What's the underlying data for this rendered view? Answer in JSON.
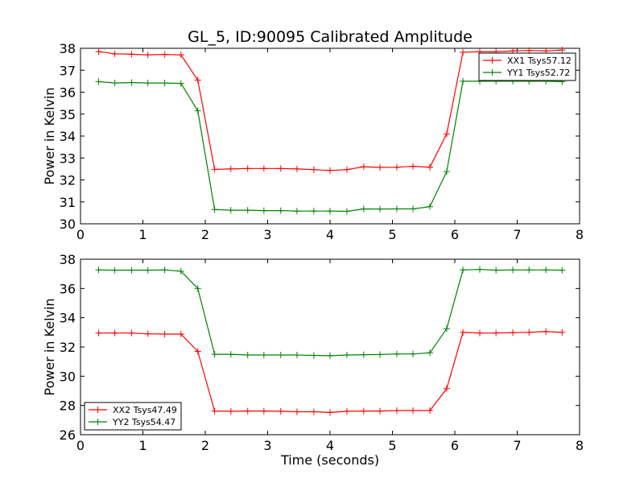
{
  "figure": {
    "title": "GL_5, ID:90095 Calibrated Amplitude",
    "xlabel": "Time (seconds)"
  },
  "colors": {
    "red": "#ff0000",
    "green": "#008000"
  },
  "chart_data": [
    {
      "type": "line",
      "title": "GL_5, ID:90095 Calibrated Amplitude",
      "xlabel": "",
      "ylabel": "Power in Kelvin",
      "xlim": [
        0,
        8
      ],
      "ylim": [
        30,
        38
      ],
      "xticks": [
        "0",
        "1",
        "2",
        "3",
        "4",
        "5",
        "6",
        "7",
        "8"
      ],
      "yticks": [
        "30",
        "31",
        "32",
        "33",
        "34",
        "35",
        "36",
        "37",
        "38"
      ],
      "grid": false,
      "legend_loc": "upper right",
      "marker": "+",
      "x": [
        0.29,
        0.55,
        0.82,
        1.08,
        1.35,
        1.61,
        1.88,
        2.15,
        2.41,
        2.68,
        2.94,
        3.21,
        3.47,
        3.74,
        4.0,
        4.27,
        4.54,
        4.8,
        5.07,
        5.33,
        5.6,
        5.87,
        6.13,
        6.4,
        6.66,
        6.93,
        7.19,
        7.46,
        7.72
      ],
      "series": [
        {
          "name": "XX1 Tsys57.12",
          "color": "#ff0000",
          "values": [
            37.85,
            37.75,
            37.73,
            37.7,
            37.72,
            37.7,
            36.55,
            32.48,
            32.5,
            32.52,
            32.52,
            32.52,
            32.5,
            32.47,
            32.43,
            32.47,
            32.6,
            32.57,
            32.58,
            32.62,
            32.58,
            34.1,
            37.82,
            37.85,
            37.85,
            37.88,
            37.9,
            37.88,
            37.92
          ]
        },
        {
          "name": "YY1 Tsys52.72",
          "color": "#008000",
          "values": [
            36.48,
            36.42,
            36.44,
            36.42,
            36.42,
            36.4,
            35.15,
            30.65,
            30.62,
            30.62,
            30.6,
            30.6,
            30.58,
            30.58,
            30.58,
            30.57,
            30.68,
            30.67,
            30.68,
            30.68,
            30.78,
            32.38,
            36.5,
            36.5,
            36.5,
            36.5,
            36.5,
            36.5,
            36.48
          ]
        }
      ]
    },
    {
      "type": "line",
      "title": "",
      "xlabel": "Time (seconds)",
      "ylabel": "Power in Kelvin",
      "xlim": [
        0,
        8
      ],
      "ylim": [
        26,
        38
      ],
      "xticks": [
        "0",
        "1",
        "2",
        "3",
        "4",
        "5",
        "6",
        "7",
        "8"
      ],
      "yticks": [
        "26",
        "28",
        "30",
        "32",
        "34",
        "36",
        "38"
      ],
      "grid": false,
      "legend_loc": "lower left",
      "marker": "+",
      "x": [
        0.29,
        0.55,
        0.82,
        1.08,
        1.35,
        1.61,
        1.88,
        2.15,
        2.41,
        2.68,
        2.94,
        3.21,
        3.47,
        3.74,
        4.0,
        4.27,
        4.54,
        4.8,
        5.07,
        5.33,
        5.6,
        5.87,
        6.13,
        6.4,
        6.66,
        6.93,
        7.19,
        7.46,
        7.72
      ],
      "series": [
        {
          "name": "XX2 Tsys47.49",
          "color": "#ff0000",
          "values": [
            32.95,
            32.95,
            32.95,
            32.9,
            32.88,
            32.88,
            31.7,
            27.62,
            27.6,
            27.62,
            27.62,
            27.6,
            27.57,
            27.57,
            27.52,
            27.6,
            27.62,
            27.62,
            27.65,
            27.65,
            27.65,
            29.15,
            33.0,
            32.95,
            32.95,
            32.98,
            33.0,
            33.05,
            33.0
          ]
        },
        {
          "name": "YY2 Tsys54.47",
          "color": "#008000",
          "values": [
            37.27,
            37.25,
            37.25,
            37.25,
            37.27,
            37.18,
            36.0,
            31.5,
            31.5,
            31.45,
            31.45,
            31.45,
            31.45,
            31.42,
            31.4,
            31.45,
            31.47,
            31.48,
            31.52,
            31.52,
            31.6,
            33.25,
            37.27,
            37.3,
            37.25,
            37.27,
            37.27,
            37.27,
            37.25
          ]
        }
      ]
    }
  ]
}
